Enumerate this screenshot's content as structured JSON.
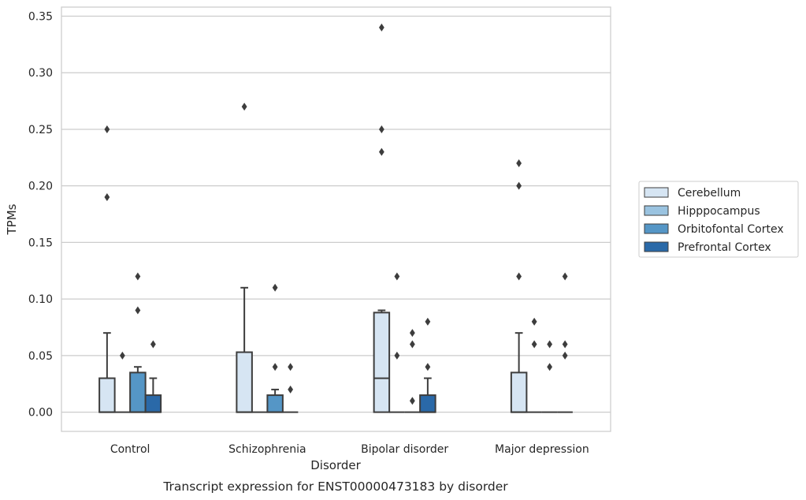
{
  "chart_data": {
    "type": "box",
    "caption": "Transcript expression for ENST00000473183 by disorder",
    "xlabel": "Disorder",
    "ylabel": "TPMs",
    "ylim": [
      -0.017,
      0.358
    ],
    "yticks": [
      0.0,
      0.05,
      0.1,
      0.15,
      0.2,
      0.25,
      0.3,
      0.35
    ],
    "ytick_labels": [
      "0.00",
      "0.05",
      "0.10",
      "0.15",
      "0.20",
      "0.25",
      "0.30",
      "0.35"
    ],
    "grid": "horizontal",
    "legend_position": "right",
    "categories": [
      "Control",
      "Schizophrenia",
      "Bipolar disorder",
      "Major depression"
    ],
    "series": [
      {
        "name": "Cerebellum",
        "color": "#d6e5f3",
        "boxes": [
          {
            "q1": 0.0,
            "median": 0.0,
            "q3": 0.03,
            "whisker_low": 0.0,
            "whisker_high": 0.07,
            "outliers": [
              0.19,
              0.25
            ]
          },
          {
            "q1": 0.0,
            "median": 0.0,
            "q3": 0.053,
            "whisker_low": 0.0,
            "whisker_high": 0.11,
            "outliers": [
              0.27
            ]
          },
          {
            "q1": 0.0,
            "median": 0.03,
            "q3": 0.088,
            "whisker_low": 0.0,
            "whisker_high": 0.09,
            "outliers": [
              0.23,
              0.25,
              0.34
            ]
          },
          {
            "q1": 0.0,
            "median": 0.0,
            "q3": 0.035,
            "whisker_low": 0.0,
            "whisker_high": 0.07,
            "outliers": [
              0.12,
              0.2,
              0.22
            ]
          }
        ]
      },
      {
        "name": "Hipppocampus",
        "color": "#9ac3e0",
        "boxes": [
          {
            "q1": 0.0,
            "median": 0.0,
            "q3": 0.0,
            "whisker_low": 0.0,
            "whisker_high": 0.0,
            "outliers": [
              0.05
            ]
          },
          {
            "q1": 0.0,
            "median": 0.0,
            "q3": 0.0,
            "whisker_low": 0.0,
            "whisker_high": 0.0,
            "outliers": []
          },
          {
            "q1": 0.0,
            "median": 0.0,
            "q3": 0.0,
            "whisker_low": 0.0,
            "whisker_high": 0.0,
            "outliers": [
              0.05,
              0.12
            ]
          },
          {
            "q1": 0.0,
            "median": 0.0,
            "q3": 0.0,
            "whisker_low": 0.0,
            "whisker_high": 0.0,
            "outliers": [
              0.06,
              0.08
            ]
          }
        ]
      },
      {
        "name": "Orbitofontal Cortex",
        "color": "#5596c6",
        "boxes": [
          {
            "q1": 0.0,
            "median": 0.0,
            "q3": 0.035,
            "whisker_low": 0.0,
            "whisker_high": 0.04,
            "outliers": [
              0.09,
              0.12
            ]
          },
          {
            "q1": 0.0,
            "median": 0.0,
            "q3": 0.015,
            "whisker_low": 0.0,
            "whisker_high": 0.02,
            "outliers": [
              0.04,
              0.11
            ]
          },
          {
            "q1": 0.0,
            "median": 0.0,
            "q3": 0.0,
            "whisker_low": 0.0,
            "whisker_high": 0.0,
            "outliers": [
              0.01,
              0.06,
              0.07
            ]
          },
          {
            "q1": 0.0,
            "median": 0.0,
            "q3": 0.0,
            "whisker_low": 0.0,
            "whisker_high": 0.0,
            "outliers": [
              0.04,
              0.06
            ]
          }
        ]
      },
      {
        "name": "Prefrontal Cortex",
        "color": "#2a69a8",
        "boxes": [
          {
            "q1": 0.0,
            "median": 0.0,
            "q3": 0.015,
            "whisker_low": 0.0,
            "whisker_high": 0.03,
            "outliers": [
              0.06
            ]
          },
          {
            "q1": 0.0,
            "median": 0.0,
            "q3": 0.0,
            "whisker_low": 0.0,
            "whisker_high": 0.0,
            "outliers": [
              0.02,
              0.04
            ]
          },
          {
            "q1": 0.0,
            "median": 0.0,
            "q3": 0.015,
            "whisker_low": 0.0,
            "whisker_high": 0.03,
            "outliers": [
              0.04,
              0.08
            ]
          },
          {
            "q1": 0.0,
            "median": 0.0,
            "q3": 0.0,
            "whisker_low": 0.0,
            "whisker_high": 0.0,
            "outliers": [
              0.05,
              0.06,
              0.12
            ]
          }
        ]
      }
    ]
  }
}
